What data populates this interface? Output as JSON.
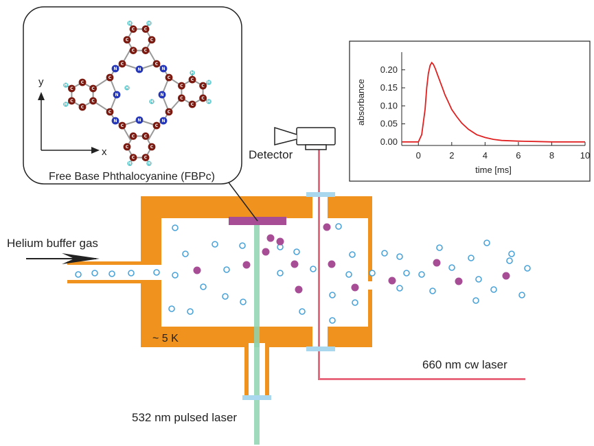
{
  "labels": {
    "helium": "Helium buffer gas",
    "temperature": "~ 5 K",
    "detector": "Detector",
    "cw_laser": "660 nm cw laser",
    "pulsed_laser": "532 nm pulsed laser",
    "molecule_name": "Free Base Phthalocyanine (FBPc)",
    "axis_y": "y",
    "axis_x": "x"
  },
  "colors": {
    "chamber": "#f0931e",
    "pulsed_beam": "#8ed4b0",
    "cw_beam": "#e8697e",
    "window": "#a9d8ee",
    "target": "#a64d96",
    "molecule_dot": "#a64d96",
    "helium_dot": "#4aa3d8",
    "carbon": "#7a1a10",
    "nitrogen": "#2637b8",
    "hydrogen": "#4bbfc4",
    "signal": "#e02020"
  },
  "atom_labels": {
    "carbon": "C",
    "nitrogen": "N",
    "hydrogen": "H"
  },
  "chart_data": {
    "type": "line",
    "xlabel": "time [ms]",
    "ylabel": "absorbance",
    "xlim": [
      -1,
      10
    ],
    "ylim": [
      -0.01,
      0.23
    ],
    "xticks": [
      0,
      2,
      4,
      6,
      8,
      10
    ],
    "yticks": [
      0.0,
      0.05,
      0.1,
      0.15,
      0.2
    ],
    "grid": false,
    "series": [
      {
        "x": [
          -1.0,
          -0.5,
          0.0,
          0.2,
          0.4,
          0.5,
          0.6,
          0.7,
          0.8,
          0.9,
          1.0,
          1.2,
          1.4,
          1.6,
          1.8,
          2.0,
          2.3,
          2.6,
          3.0,
          3.5,
          4.0,
          4.5,
          5.0,
          6.0,
          7.0,
          8.0,
          9.0,
          10.0
        ],
        "y": [
          0.0,
          0.0,
          0.0,
          0.02,
          0.09,
          0.15,
          0.19,
          0.212,
          0.22,
          0.215,
          0.205,
          0.18,
          0.155,
          0.13,
          0.11,
          0.09,
          0.07,
          0.052,
          0.035,
          0.02,
          0.012,
          0.007,
          0.004,
          0.002,
          0.001,
          0.0,
          0.0,
          0.0
        ]
      }
    ]
  }
}
